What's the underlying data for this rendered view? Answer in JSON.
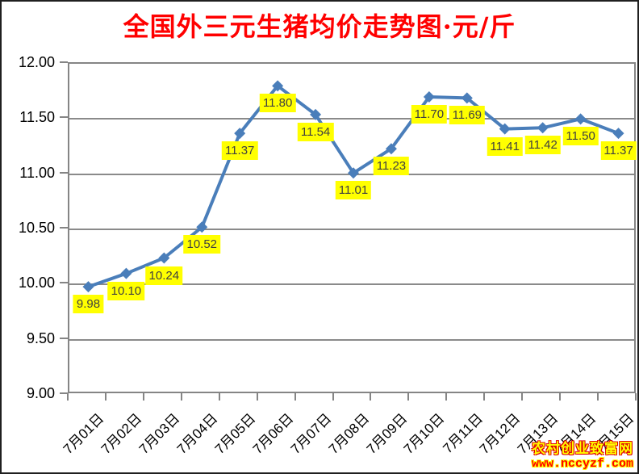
{
  "chart_data": {
    "type": "line",
    "title": "全国外三元生猪均价走势图·元/斤",
    "categories": [
      "7月01日",
      "7月02日",
      "7月03日",
      "7月04日",
      "7月05日",
      "7月06日",
      "7月07日",
      "7月08日",
      "7月09日",
      "7月10日",
      "7月11日",
      "7月12日",
      "7月13日",
      "7月14日",
      "7月15日"
    ],
    "values": [
      9.98,
      10.1,
      10.24,
      10.52,
      11.37,
      11.8,
      11.54,
      11.01,
      11.23,
      11.7,
      11.69,
      11.41,
      11.42,
      11.5,
      11.37
    ],
    "data_labels": [
      "9.98",
      "10.10",
      "10.24",
      "10.52",
      "11.37",
      "11.80",
      "11.54",
      "11.01",
      "11.23",
      "11.70",
      "11.69",
      "11.41",
      "11.42",
      "11.50",
      "11.37"
    ],
    "xlabel": "",
    "ylabel": "",
    "unit": "元/斤",
    "ylim": [
      9.0,
      12.0
    ],
    "ytick_step": 0.5,
    "ytick_labels": [
      "12.00",
      "11.50",
      "11.00",
      "10.50",
      "10.00",
      "9.50",
      "9.00"
    ],
    "grid": true,
    "legend": "none",
    "marker": "diamond",
    "colors": {
      "line": "#4A7EBA",
      "marker": "#4A7EBA",
      "grid": "#8A8A8A",
      "title": "#FF0000",
      "axis_text": "#000000",
      "label_bg": "#FFFF00",
      "label_text": "#404040"
    }
  },
  "watermark": {
    "line1": "农村创业致富网",
    "line2": "www.nccyzf.com"
  }
}
